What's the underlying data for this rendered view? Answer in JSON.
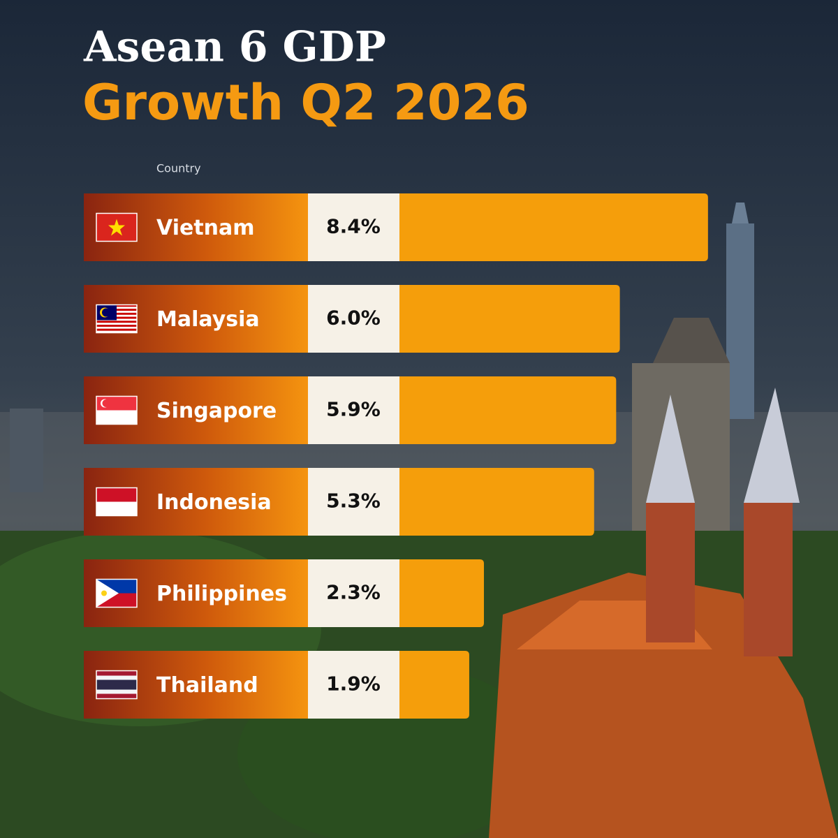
{
  "chart_data": {
    "type": "bar",
    "title": "Asean 6 GDP",
    "subtitle": "Growth Q2 2026",
    "header": "Country",
    "categories": [
      "Vietnam",
      "Malaysia",
      "Singapore",
      "Indonesia",
      "Philippines",
      "Thailand"
    ],
    "values": [
      8.4,
      6.0,
      5.9,
      5.3,
      2.3,
      1.9
    ],
    "value_labels": [
      "8.4%",
      "6.0%",
      "5.9%",
      "5.3%",
      "2.3%",
      "1.9%"
    ],
    "color": "#f59e0b"
  }
}
